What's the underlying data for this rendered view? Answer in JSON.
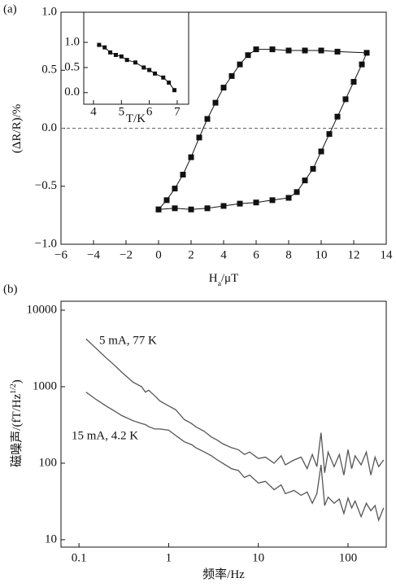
{
  "chart_data": [
    {
      "type": "line",
      "panel_label": "(a)",
      "y_label": [
        "(ΔR/R)/%"
      ],
      "x_label": [
        "H",
        "a",
        "/μT"
      ],
      "xlim": [
        -6,
        14
      ],
      "xticks": [
        {
          "value": -6,
          "label": "−6"
        },
        {
          "value": -4,
          "label": "−4"
        },
        {
          "value": -2,
          "label": "−2"
        },
        0,
        2,
        4,
        6,
        8,
        10,
        12,
        14
      ],
      "ylim": [
        -1,
        1
      ],
      "yticks": [
        {
          "value": -1,
          "label": "−1.0"
        },
        {
          "value": -0.5,
          "label": "−0.5"
        },
        {
          "value": 0,
          "label": "0.0"
        },
        {
          "value": 0.5,
          "label": "0.5"
        },
        {
          "value": 1,
          "label": "1.0"
        }
      ],
      "reference_line": 0,
      "marker": "square",
      "series": [
        {
          "color": "#111111",
          "x": [
            0,
            1,
            2,
            3,
            4,
            5,
            6,
            7,
            8,
            8.5,
            9,
            9.5,
            10,
            10.5,
            11,
            11.5,
            12,
            12.5,
            12.8,
            11,
            10,
            9,
            8,
            7,
            6,
            5.5,
            5,
            4.5,
            4,
            3.5,
            3,
            2.5,
            2,
            1.5,
            1,
            0.5,
            0
          ],
          "values": [
            -0.7,
            -0.69,
            -0.7,
            -0.69,
            -0.67,
            -0.65,
            -0.64,
            -0.62,
            -0.6,
            -0.55,
            -0.45,
            -0.35,
            -0.2,
            -0.05,
            0.1,
            0.25,
            0.4,
            0.55,
            0.65,
            0.66,
            0.67,
            0.67,
            0.67,
            0.68,
            0.68,
            0.63,
            0.55,
            0.45,
            0.35,
            0.22,
            0.08,
            -0.08,
            -0.25,
            -0.4,
            -0.52,
            -0.62,
            -0.7
          ]
        }
      ]
    },
    {
      "type": "line",
      "x_label": [
        "T/K"
      ],
      "xlim": [
        3.65,
        7.41
      ],
      "xticks": [
        4,
        5,
        6,
        7
      ],
      "ylim": [
        -0.23,
        1.6
      ],
      "yticks": [
        {
          "value": 0,
          "label": "0.0"
        },
        {
          "value": 0.5,
          "label": "0.5"
        },
        {
          "value": 1,
          "label": "1.0"
        }
      ],
      "marker": "square",
      "series": [
        {
          "color": "#111111",
          "x": [
            4.2,
            4.4,
            4.6,
            4.8,
            5,
            5.2,
            5.5,
            5.8,
            6,
            6.2,
            6.5,
            6.7,
            6.9
          ],
          "values": [
            0.95,
            0.9,
            0.8,
            0.75,
            0.72,
            0.65,
            0.6,
            0.5,
            0.45,
            0.38,
            0.3,
            0.2,
            0.05
          ]
        }
      ]
    },
    {
      "type": "line",
      "panel_label": "(b)",
      "x_label": [
        "频率/Hz"
      ],
      "y_label": [
        "磁噪声/(fT/Hz",
        "1/2",
        ")"
      ],
      "log_x": true,
      "log_y": true,
      "xlim": [
        0.063,
        267
      ],
      "xticks": [
        0.1,
        1,
        10,
        100
      ],
      "ylim": [
        8,
        13100
      ],
      "yticks": [
        10,
        100,
        1000,
        10000
      ],
      "series": [
        {
          "name": "5 mA, 77 K",
          "color": "#555555",
          "x": [
            0.12,
            0.15,
            0.2,
            0.25,
            0.3,
            0.4,
            0.5,
            0.55,
            0.6,
            0.7,
            0.8,
            1,
            1.2,
            1.5,
            1.8,
            2,
            2.5,
            3,
            3.5,
            4,
            5,
            6,
            7,
            8,
            10,
            12,
            15,
            18,
            20,
            25,
            30,
            35,
            40,
            45,
            50,
            55,
            60,
            70,
            80,
            90,
            100,
            110,
            120,
            140,
            160,
            180,
            200,
            220,
            250
          ],
          "values": [
            4200,
            3300,
            2400,
            1900,
            1550,
            1150,
            1000,
            850,
            900,
            760,
            650,
            560,
            500,
            370,
            330,
            300,
            260,
            220,
            200,
            180,
            160,
            150,
            130,
            140,
            115,
            120,
            100,
            125,
            95,
            110,
            120,
            85,
            130,
            90,
            250,
            75,
            140,
            90,
            130,
            70,
            150,
            85,
            125,
            95,
            140,
            70,
            120,
            90,
            110
          ]
        },
        {
          "name": "15 mA, 4.2 K",
          "color": "#555555",
          "x": [
            0.12,
            0.15,
            0.2,
            0.25,
            0.3,
            0.4,
            0.5,
            0.55,
            0.6,
            0.7,
            0.8,
            1,
            1.2,
            1.5,
            1.8,
            2,
            2.5,
            3,
            3.5,
            4,
            5,
            6,
            7,
            8,
            10,
            12,
            15,
            18,
            20,
            25,
            30,
            35,
            40,
            45,
            50,
            55,
            60,
            70,
            80,
            90,
            100,
            110,
            120,
            140,
            160,
            180,
            200,
            220,
            250
          ],
          "values": [
            850,
            700,
            560,
            480,
            420,
            360,
            330,
            320,
            300,
            280,
            280,
            270,
            230,
            190,
            175,
            160,
            140,
            125,
            110,
            100,
            85,
            80,
            65,
            70,
            55,
            58,
            45,
            52,
            40,
            44,
            38,
            42,
            30,
            40,
            95,
            28,
            36,
            30,
            34,
            22,
            35,
            26,
            32,
            20,
            30,
            24,
            28,
            18,
            26
          ]
        }
      ]
    }
  ]
}
